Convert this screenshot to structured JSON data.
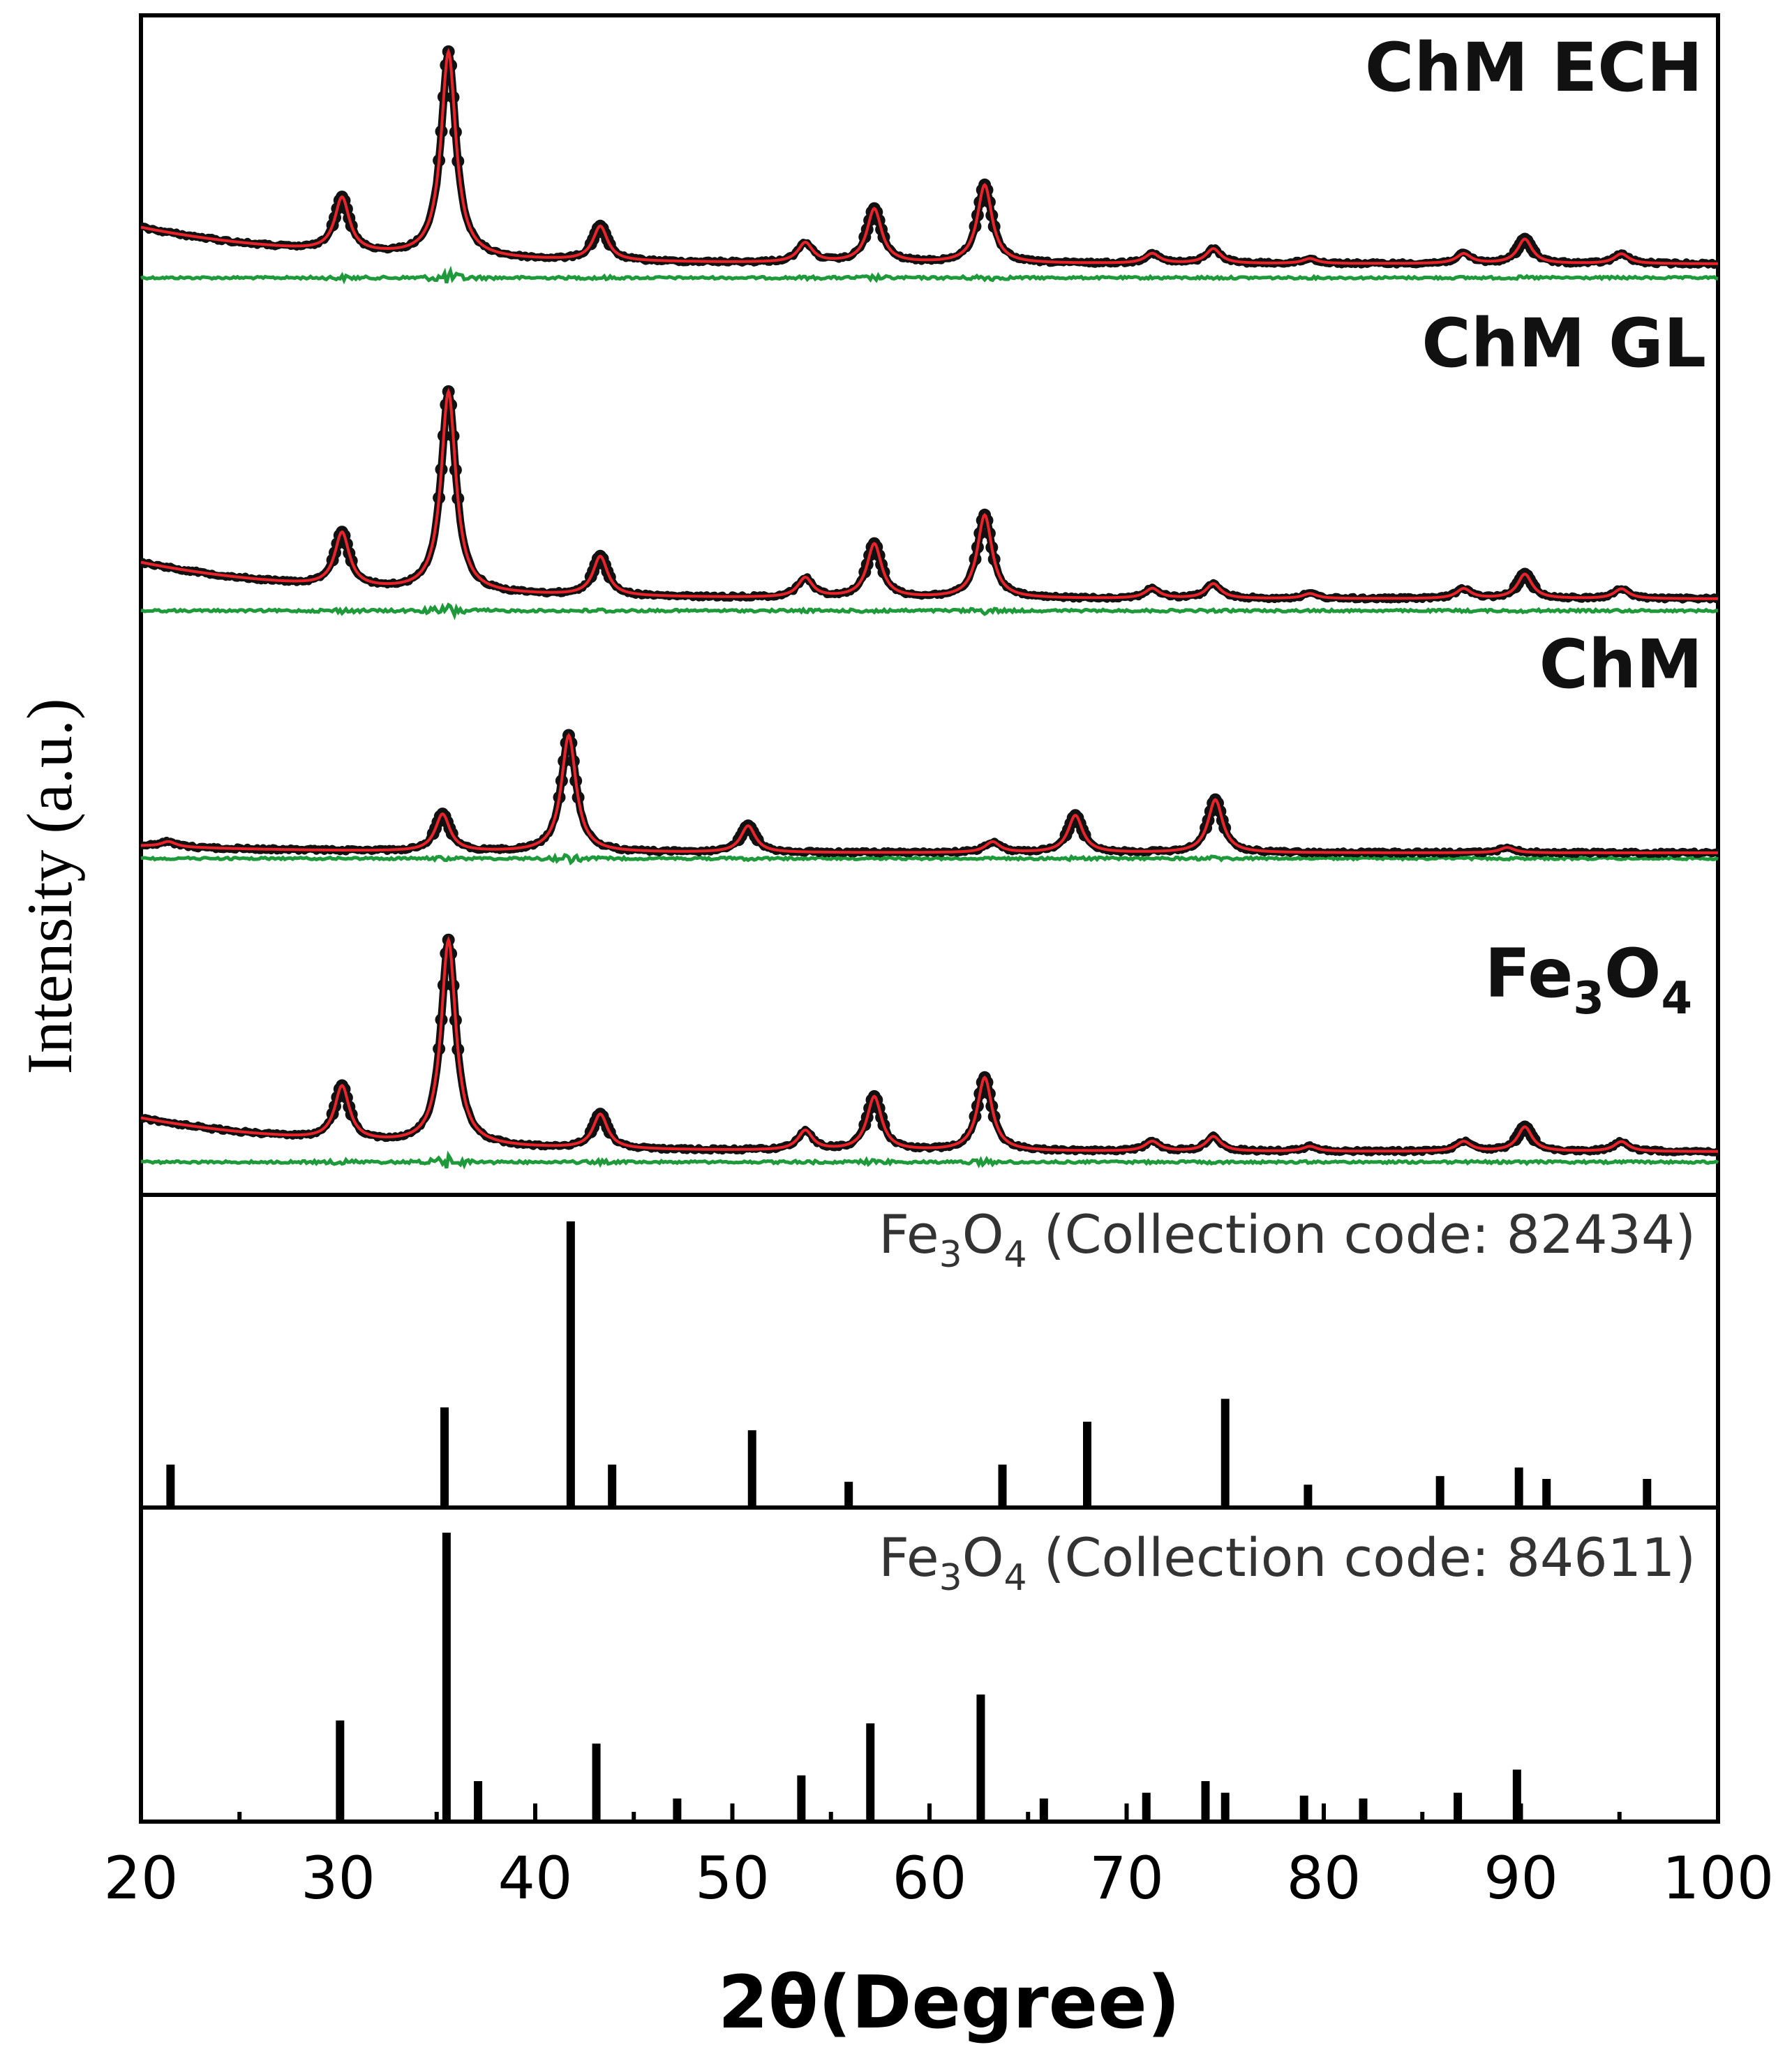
{
  "chart_data": {
    "type": "line",
    "title": "",
    "xlabel": "2θ(Degree)",
    "ylabel": "Intensity (a.u.)",
    "xlim": [
      20,
      100
    ],
    "xticks": [
      20,
      30,
      40,
      50,
      60,
      70,
      80,
      90,
      100
    ],
    "grid": false,
    "legend": "none",
    "colors": {
      "observed": "#111111",
      "calculated": "#e8232a",
      "difference": "#1f9a3a",
      "reference": "#000000",
      "axis": "#000000"
    },
    "series_legend": [
      "observed (black dots)",
      "calculated (red line)",
      "difference (green line)"
    ],
    "patterns": [
      {
        "name": "ChM ECH",
        "label": "ChM ECH",
        "peaks": [
          {
            "x": 30.2,
            "h": 0.11
          },
          {
            "x": 35.6,
            "h": 0.42
          },
          {
            "x": 43.3,
            "h": 0.07
          },
          {
            "x": 53.7,
            "h": 0.04
          },
          {
            "x": 57.2,
            "h": 0.11
          },
          {
            "x": 62.8,
            "h": 0.16
          },
          {
            "x": 71.3,
            "h": 0.02
          },
          {
            "x": 74.4,
            "h": 0.03
          },
          {
            "x": 79.3,
            "h": 0.01
          },
          {
            "x": 87.1,
            "h": 0.02
          },
          {
            "x": 90.2,
            "h": 0.05
          },
          {
            "x": 95.1,
            "h": 0.02
          }
        ]
      },
      {
        "name": "ChM GL",
        "label": "ChM GL",
        "peaks": [
          {
            "x": 30.2,
            "h": 0.11
          },
          {
            "x": 35.6,
            "h": 0.41
          },
          {
            "x": 43.3,
            "h": 0.08
          },
          {
            "x": 53.7,
            "h": 0.04
          },
          {
            "x": 57.2,
            "h": 0.11
          },
          {
            "x": 62.8,
            "h": 0.17
          },
          {
            "x": 71.3,
            "h": 0.02
          },
          {
            "x": 74.4,
            "h": 0.03
          },
          {
            "x": 79.3,
            "h": 0.01
          },
          {
            "x": 87.1,
            "h": 0.02
          },
          {
            "x": 90.2,
            "h": 0.05
          },
          {
            "x": 95.1,
            "h": 0.02
          }
        ]
      },
      {
        "name": "ChM",
        "label": "ChM",
        "peaks": [
          {
            "x": 21.4,
            "h": 0.01
          },
          {
            "x": 35.3,
            "h": 0.07
          },
          {
            "x": 41.7,
            "h": 0.22
          },
          {
            "x": 50.8,
            "h": 0.05
          },
          {
            "x": 63.2,
            "h": 0.02
          },
          {
            "x": 67.4,
            "h": 0.07
          },
          {
            "x": 74.5,
            "h": 0.1
          },
          {
            "x": 89.3,
            "h": 0.01
          }
        ]
      },
      {
        "name": "Fe3O4",
        "label": "Fe",
        "label_sub1": "3",
        "label_mid": "O",
        "label_sub2": "4",
        "peaks": [
          {
            "x": 30.2,
            "h": 0.11
          },
          {
            "x": 35.6,
            "h": 0.42
          },
          {
            "x": 43.3,
            "h": 0.07
          },
          {
            "x": 53.7,
            "h": 0.04
          },
          {
            "x": 57.2,
            "h": 0.11
          },
          {
            "x": 62.8,
            "h": 0.15
          },
          {
            "x": 71.3,
            "h": 0.02
          },
          {
            "x": 74.4,
            "h": 0.03
          },
          {
            "x": 79.3,
            "h": 0.01
          },
          {
            "x": 87.1,
            "h": 0.02
          },
          {
            "x": 90.2,
            "h": 0.05
          },
          {
            "x": 95.1,
            "h": 0.02
          }
        ]
      }
    ],
    "references": [
      {
        "name": "Fe3O4 (Collection code: 82434)",
        "label_a": "Fe",
        "label_sub1": "3",
        "label_b": "O",
        "label_sub2": "4",
        "label_c": " (Collection code: 82434)",
        "lines": [
          {
            "x": 21.5,
            "h": 0.15
          },
          {
            "x": 35.4,
            "h": 0.35
          },
          {
            "x": 41.8,
            "h": 1.0
          },
          {
            "x": 43.9,
            "h": 0.15
          },
          {
            "x": 51.0,
            "h": 0.27
          },
          {
            "x": 55.9,
            "h": 0.09
          },
          {
            "x": 63.7,
            "h": 0.15
          },
          {
            "x": 68.0,
            "h": 0.3
          },
          {
            "x": 75.0,
            "h": 0.38
          },
          {
            "x": 79.2,
            "h": 0.08
          },
          {
            "x": 85.9,
            "h": 0.11
          },
          {
            "x": 89.9,
            "h": 0.14
          },
          {
            "x": 91.3,
            "h": 0.1
          },
          {
            "x": 96.4,
            "h": 0.1
          }
        ]
      },
      {
        "name": "Fe3O4 (Collection code: 84611)",
        "label_a": "Fe",
        "label_sub1": "3",
        "label_b": "O",
        "label_sub2": "4",
        "label_c": " (Collection code: 84611)",
        "lines": [
          {
            "x": 30.1,
            "h": 0.35
          },
          {
            "x": 35.5,
            "h": 1.0
          },
          {
            "x": 37.1,
            "h": 0.14
          },
          {
            "x": 43.1,
            "h": 0.27
          },
          {
            "x": 47.2,
            "h": 0.08
          },
          {
            "x": 53.5,
            "h": 0.16
          },
          {
            "x": 57.0,
            "h": 0.34
          },
          {
            "x": 62.6,
            "h": 0.44
          },
          {
            "x": 65.8,
            "h": 0.08
          },
          {
            "x": 71.0,
            "h": 0.1
          },
          {
            "x": 74.0,
            "h": 0.14
          },
          {
            "x": 75.0,
            "h": 0.1
          },
          {
            "x": 79.0,
            "h": 0.09
          },
          {
            "x": 82.0,
            "h": 0.08
          },
          {
            "x": 86.8,
            "h": 0.1
          },
          {
            "x": 89.8,
            "h": 0.18
          }
        ]
      }
    ]
  }
}
